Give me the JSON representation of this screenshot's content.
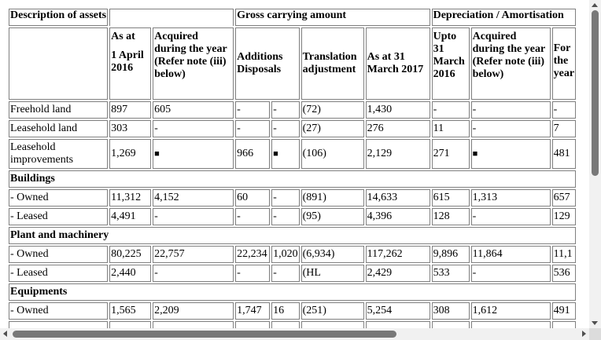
{
  "header": {
    "description": "Description of assets",
    "gross_carrying_amount": "Gross carrying amount",
    "depreciation_amortisation": "Depreciation / Amortisation",
    "gross_as_at_line1": "As at",
    "gross_as_at_line2": "1 April 2016",
    "gross_acquired": "Acquired during the year (Refer note (iii) below)",
    "additions": "Additions",
    "disposals": "Disposals",
    "translation_adjustment": "Translation adjustment",
    "as_at_31_march_2017": "As at 31 March 2017",
    "dep_upto": "Upto 31 March 2016",
    "dep_acquired": "Acquired during the year (Refer note (iii) below)",
    "dep_for_year": "For the year"
  },
  "rows": [
    {
      "type": "data",
      "label": "Freehold land",
      "cells": [
        "897",
        "605",
        "-",
        "-",
        "(72)",
        "1,430",
        "-",
        "-",
        "-"
      ]
    },
    {
      "type": "data",
      "label": "Leasehold land",
      "cells": [
        "303",
        "-",
        "-",
        "-",
        "(27)",
        "276",
        "11",
        "-",
        "7"
      ]
    },
    {
      "type": "data",
      "label": "Leasehold improvements",
      "cells": [
        "1,269",
        "■",
        "966",
        "■",
        "(106)",
        "2,129",
        "271",
        "■",
        "481"
      ]
    },
    {
      "type": "section",
      "label": "Buildings"
    },
    {
      "type": "data",
      "label": "- Owned",
      "cells": [
        "11,312",
        "4,152",
        "60",
        "-",
        "(891)",
        "14,633",
        "615",
        "1,313",
        "657"
      ]
    },
    {
      "type": "data",
      "label": "- Leased",
      "cells": [
        "4,491",
        "-",
        "-",
        "-",
        "(95)",
        "4,396",
        "128",
        "-",
        "129"
      ]
    },
    {
      "type": "section",
      "label": "Plant and machinery"
    },
    {
      "type": "data",
      "label": "- Owned",
      "cells": [
        "80,225",
        "22,757",
        "22,234",
        "1,020",
        "(6,934)",
        "117,262",
        "9,896",
        "11,864",
        "11,1"
      ]
    },
    {
      "type": "data",
      "label": "- Leased",
      "cells": [
        "2,440",
        "-",
        "-",
        "-",
        "(HL",
        "2,429",
        "533",
        "-",
        "536"
      ]
    },
    {
      "type": "section",
      "label": "Equipments"
    },
    {
      "type": "data",
      "label": "- Owned",
      "cells": [
        "1,565",
        "2,209",
        "1,747",
        "16",
        "(251)",
        "5,254",
        "308",
        "1,612",
        "491"
      ]
    },
    {
      "type": "data",
      "label": "",
      "cells": [
        "",
        "",
        "",
        "",
        "",
        "",
        "",
        "",
        ""
      ]
    }
  ]
}
